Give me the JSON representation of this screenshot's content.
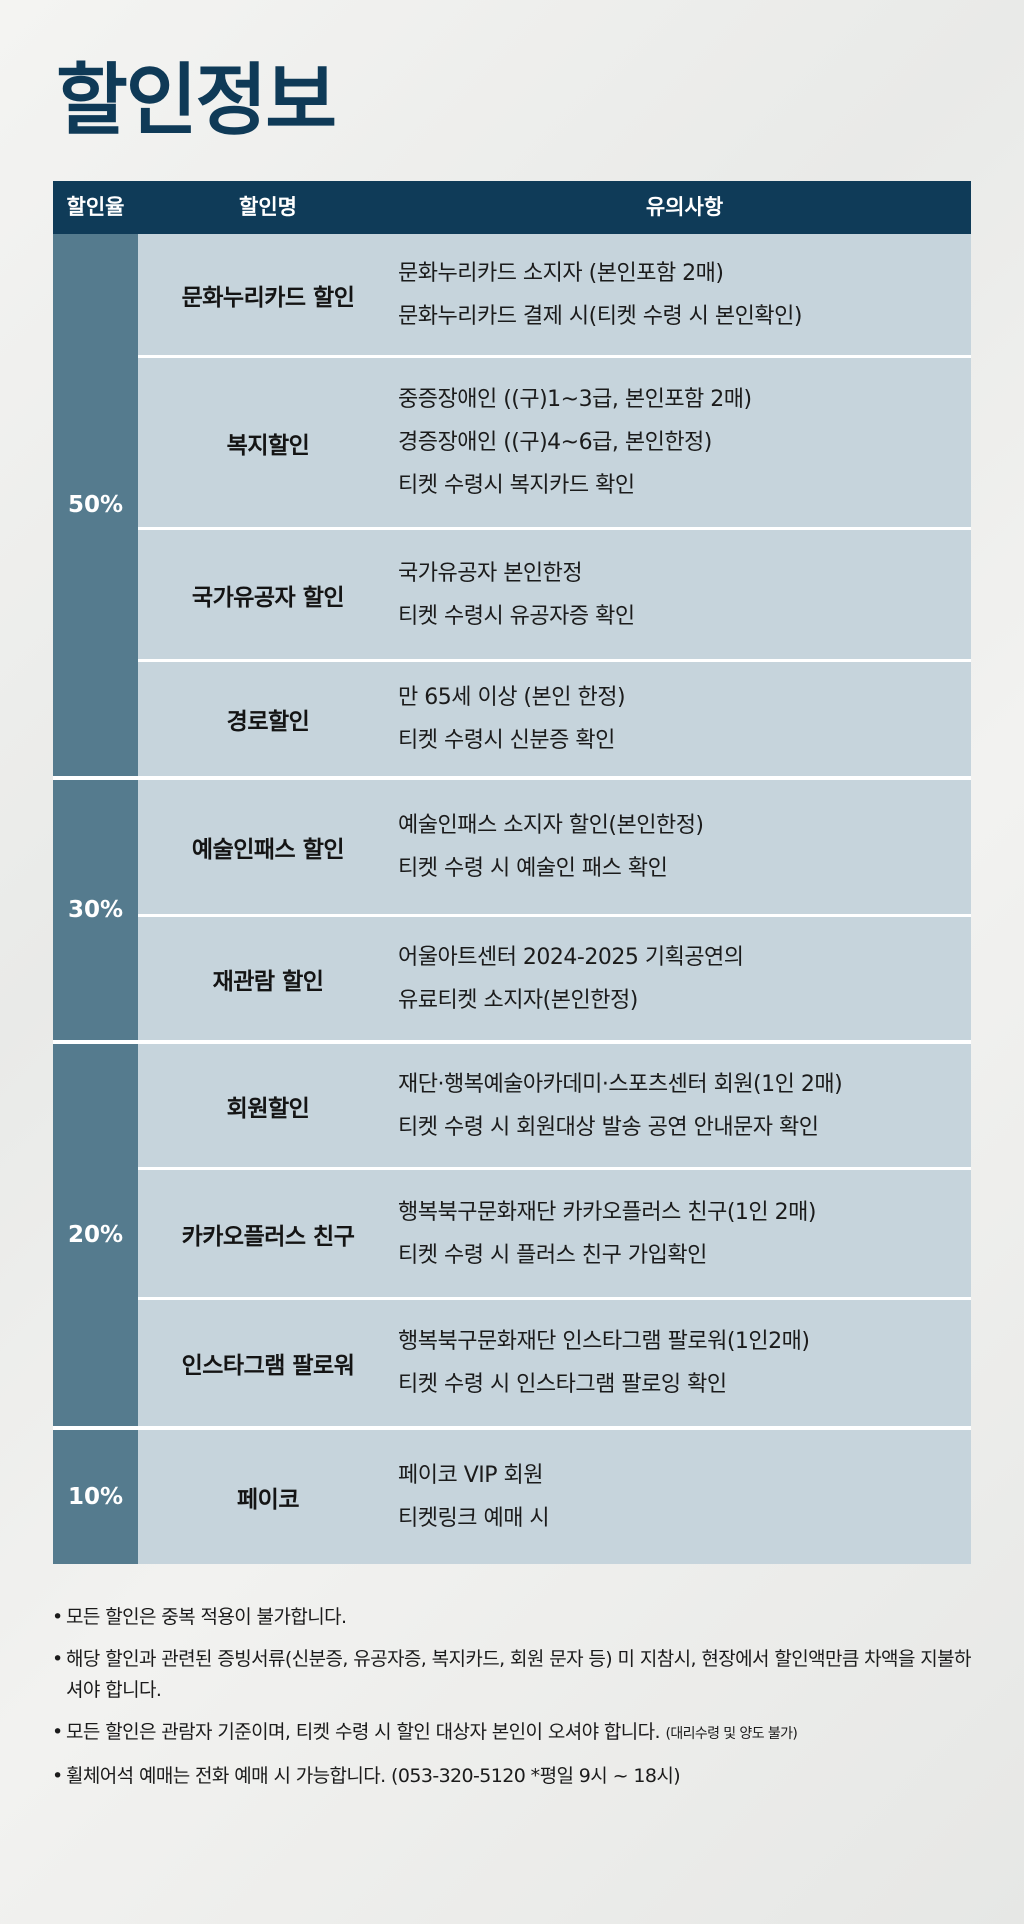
{
  "title": "할인정보",
  "table": {
    "headers": {
      "rate": "할인율",
      "name": "할인명",
      "notes": "유의사항"
    },
    "groups": [
      {
        "rate": "50%",
        "rows": [
          {
            "name": "문화누리카드 할인",
            "notes": [
              "문화누리카드 소지자 (본인포함 2매)",
              "문화누리카드 결제 시(티켓 수령 시 본인확인)"
            ]
          },
          {
            "name": "복지할인",
            "notes": [
              "중증장애인 ((구)1~3급, 본인포함 2매)",
              "경증장애인 ((구)4~6급, 본인한정)",
              "티켓 수령시 복지카드 확인"
            ]
          },
          {
            "name": "국가유공자 할인",
            "notes": [
              "국가유공자 본인한정",
              "티켓 수령시 유공자증 확인"
            ]
          },
          {
            "name": "경로할인",
            "notes": [
              "만 65세 이상 (본인 한정)",
              "티켓 수령시 신분증 확인"
            ]
          }
        ]
      },
      {
        "rate": "30%",
        "rows": [
          {
            "name": "예술인패스 할인",
            "notes": [
              "예술인패스 소지자 할인(본인한정)",
              "티켓 수령 시 예술인 패스 확인"
            ]
          },
          {
            "name": "재관람 할인",
            "notes": [
              "어울아트센터 2024-2025 기획공연의",
              "유료티켓 소지자(본인한정)"
            ]
          }
        ]
      },
      {
        "rate": "20%",
        "rows": [
          {
            "name": "회원할인",
            "notes": [
              "재단·행복예술아카데미·스포츠센터 회원(1인 2매)",
              "티켓 수령 시 회원대상 발송 공연 안내문자 확인"
            ]
          },
          {
            "name": "카카오플러스 친구",
            "notes": [
              "행복북구문화재단 카카오플러스 친구(1인 2매)",
              "티켓 수령 시 플러스 친구 가입확인"
            ]
          },
          {
            "name": "인스타그램 팔로워",
            "notes": [
              "행복북구문화재단 인스타그램 팔로워(1인2매)",
              "티켓 수령 시 인스타그램 팔로잉 확인"
            ]
          }
        ]
      },
      {
        "rate": "10%",
        "rows": [
          {
            "name": "페이코",
            "notes": [
              "페이코 VIP 회원",
              "티켓링크 예매 시"
            ]
          }
        ]
      }
    ]
  },
  "footnotes": {
    "bullet": "•",
    "items": [
      {
        "text": "모든 할인은 중복 적용이 불가합니다."
      },
      {
        "text": "해당 할인과 관련된 증빙서류(신분증, 유공자증, 복지카드, 회원 문자 등) 미 지참시, 현장에서 할인액만큼 차액을 지불하셔야 합니다."
      },
      {
        "text": "모든 할인은 관람자 기준이며, 티켓 수령 시 할인 대상자 본인이 오셔야 합니다.",
        "small": "(대리수령 및 양도 불가)"
      },
      {
        "text": "휠체어석 예매는 전화 예매 시 가능합니다. (053-320-5120 *평일 9시 ~ 18시)"
      }
    ]
  }
}
